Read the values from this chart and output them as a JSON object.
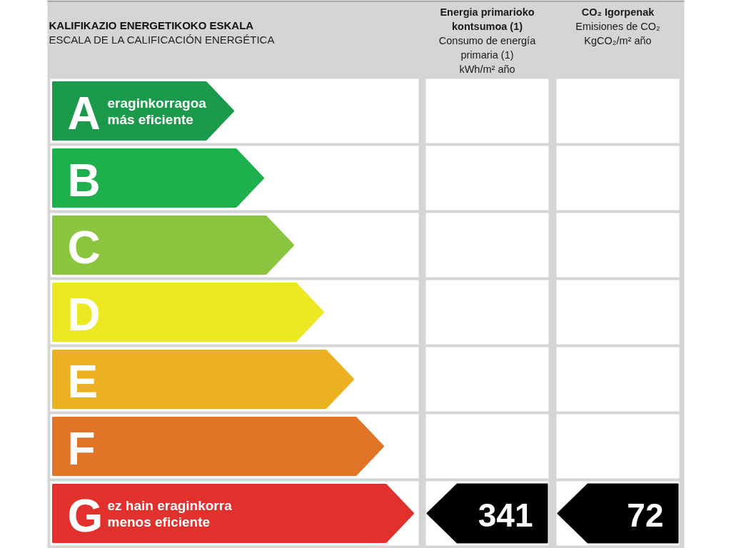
{
  "chart_data": {
    "type": "other",
    "title": "KALIFIKAZIO ENERGETIKOKO ESKALA",
    "subtitle": "ESCALA DE LA CALIFICACIÓN ENERGÉTICA",
    "categories": [
      "A",
      "B",
      "C",
      "D",
      "E",
      "F",
      "G"
    ],
    "colors": [
      "#1a9a4a",
      "#1db04d",
      "#8bc540",
      "#ece824",
      "#ecb120",
      "#e07427",
      "#e2302c"
    ],
    "series": [
      {
        "color": "#000000",
        "values": [
          null,
          null,
          null,
          null,
          null,
          null,
          341
        ]
      },
      {
        "color": "#000000",
        "values": [
          null,
          null,
          null,
          null,
          null,
          null,
          72
        ]
      }
    ],
    "data_labels": true,
    "annotations": [
      "Energia primarioko kontsumoa (1)\nConsumo de energía primaria (1)\nkWh/m² año",
      "CO₂ Igorpenak\nEmisiones de CO₂\nKgCO₂/m² año",
      {
        "text": "eraginkorragoa",
        "y": "A"
      },
      {
        "text": "más eficiente",
        "y": "A"
      },
      {
        "text": "ez hain eraginkorra",
        "y": "G"
      },
      {
        "text": "menos eficiente",
        "y": "G"
      }
    ]
  }
}
